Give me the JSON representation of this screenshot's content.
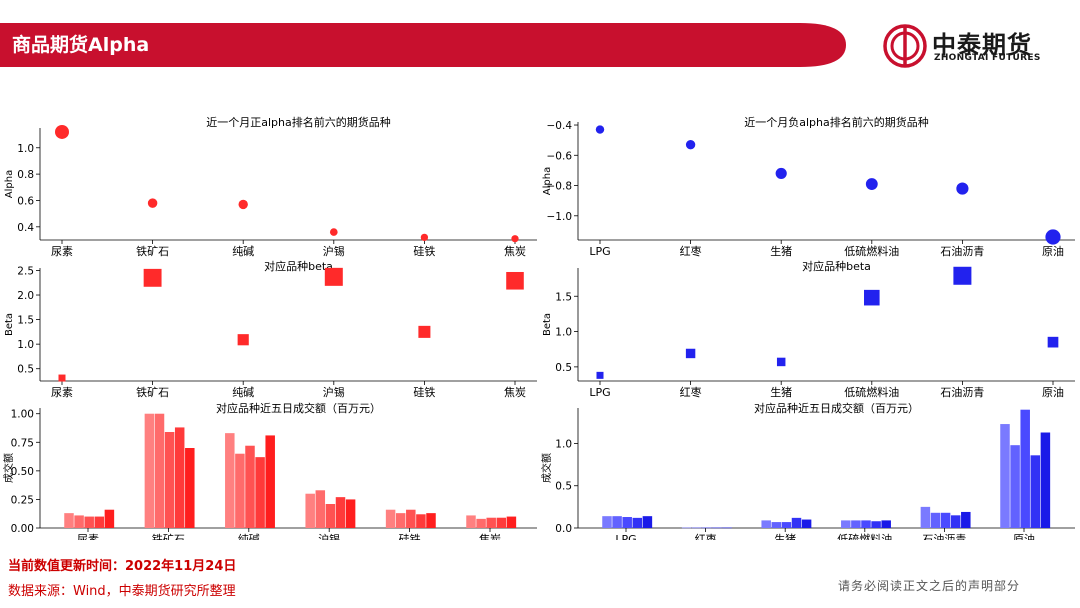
{
  "header": {
    "title": "商品期货Alpha",
    "brand_cn": "中泰期货",
    "brand_en": "ZHONGTAI FUTURES"
  },
  "footer": {
    "update_time": "当前数值更新时间：2022年11月24日",
    "source": "数据来源：Wind，中泰期货研究所整理",
    "disclaimer": "请务必阅读正文之后的声明部分"
  },
  "colors": {
    "banner_red": "#c8102e",
    "positive": "#ff2a2a",
    "negative": "#2222ee"
  },
  "chart_data": [
    {
      "type": "scatter",
      "title": "近一个月正alpha排名前六的期货品种",
      "ylabel": "Alpha",
      "categories": [
        "尿素",
        "铁矿石",
        "纯碱",
        "沪锡",
        "硅铁",
        "焦炭"
      ],
      "values": [
        1.12,
        0.58,
        0.57,
        0.36,
        0.32,
        0.31
      ],
      "ylim": [
        0.3,
        1.15
      ],
      "yticks": [
        0.4,
        0.6,
        0.8,
        1.0
      ],
      "yticklabels": [
        "0.4",
        "0.6",
        "0.8",
        "1.0"
      ]
    },
    {
      "type": "scatter",
      "title": "对应品种beta",
      "ylabel": "Beta",
      "categories": [
        "尿素",
        "铁矿石",
        "纯碱",
        "沪锡",
        "硅铁",
        "焦炭"
      ],
      "values": [
        0.31,
        2.35,
        1.09,
        2.37,
        1.25,
        2.29
      ],
      "ylim": [
        0.25,
        2.55
      ],
      "yticks": [
        0.5,
        1.0,
        1.5,
        2.0,
        2.5
      ],
      "yticklabels": [
        "0.5",
        "1.0",
        "1.5",
        "2.0",
        "2.5"
      ]
    },
    {
      "type": "bar",
      "title": "对应品种近五日成交额（百万元）",
      "ylabel": "成交额",
      "categories": [
        "尿素",
        "铁矿石",
        "纯碱",
        "沪锡",
        "硅铁",
        "焦炭"
      ],
      "values": [
        [
          0.13,
          0.11,
          0.1,
          0.1,
          0.16
        ],
        [
          1.0,
          1.0,
          0.84,
          0.88,
          0.7
        ],
        [
          0.83,
          0.65,
          0.72,
          0.62,
          0.81
        ],
        [
          0.3,
          0.33,
          0.21,
          0.27,
          0.25
        ],
        [
          0.16,
          0.13,
          0.16,
          0.12,
          0.13
        ],
        [
          0.11,
          0.08,
          0.09,
          0.09,
          0.1
        ]
      ],
      "ylim": [
        0,
        1.05
      ],
      "yticks": [
        0,
        0.25,
        0.5,
        0.75,
        1.0
      ],
      "yticklabels": [
        "0.00",
        "0.25",
        "0.50",
        "0.75",
        "1.00"
      ]
    },
    {
      "type": "scatter",
      "title": "近一个月负alpha排名前六的期货品种",
      "ylabel": "Alpha",
      "categories": [
        "LPG",
        "红枣",
        "生猪",
        "低硫燃料油",
        "石油沥青",
        "原油"
      ],
      "values": [
        -0.43,
        -0.53,
        -0.72,
        -0.79,
        -0.82,
        -1.14
      ],
      "ylim": [
        -1.16,
        -0.38
      ],
      "yticks": [
        -1.0,
        -0.8,
        -0.6,
        -0.4
      ],
      "yticklabels": [
        "−1.0",
        "−0.8",
        "−0.6",
        "−0.4"
      ]
    },
    {
      "type": "scatter",
      "title": "对应品种beta",
      "ylabel": "Beta",
      "categories": [
        "LPG",
        "红枣",
        "生猪",
        "低硫燃料油",
        "石油沥青",
        "原油"
      ],
      "values": [
        0.38,
        0.69,
        0.57,
        1.48,
        1.79,
        0.85
      ],
      "ylim": [
        0.3,
        1.9
      ],
      "yticks": [
        0.5,
        1.0,
        1.5
      ],
      "yticklabels": [
        "0.5",
        "1.0",
        "1.5"
      ]
    },
    {
      "type": "bar",
      "title": "对应品种近五日成交额（百万元）",
      "ylabel": "成交额",
      "categories": [
        "LPG",
        "红枣",
        "生猪",
        "低硫燃料油",
        "石油沥青",
        "原油"
      ],
      "values": [
        [
          0.14,
          0.14,
          0.13,
          0.12,
          0.14
        ],
        [
          0.005,
          0.005,
          0.005,
          0.005,
          0.005
        ],
        [
          0.09,
          0.07,
          0.07,
          0.12,
          0.1
        ],
        [
          0.09,
          0.09,
          0.09,
          0.08,
          0.09
        ],
        [
          0.25,
          0.18,
          0.18,
          0.15,
          0.19
        ],
        [
          1.23,
          0.98,
          1.4,
          0.86,
          1.13
        ]
      ],
      "ylim": [
        0,
        1.42
      ],
      "yticks": [
        0,
        0.5,
        1.0
      ],
      "yticklabels": [
        "0.0",
        "0.5",
        "1.0"
      ]
    }
  ]
}
